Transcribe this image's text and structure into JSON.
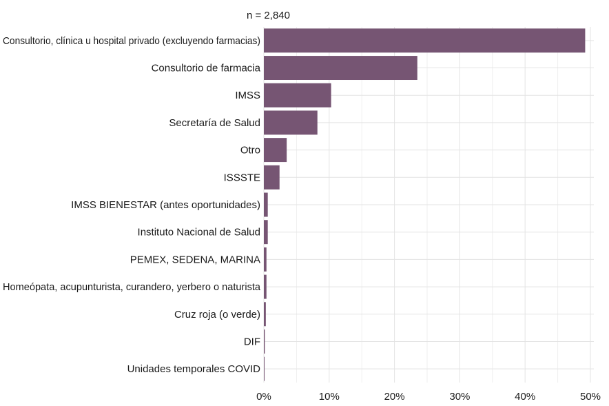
{
  "chart_data": {
    "type": "bar",
    "orientation": "horizontal",
    "subtitle": "n = 2,840",
    "categories": [
      "Consultorio, clínica u hospital privado (excluyendo farmacias)",
      "Consultorio de farmacia",
      "IMSS",
      "Secretaría de Salud",
      "Otro",
      "ISSSTE",
      "IMSS BIENESTAR (antes oportunidades)",
      "Instituto Nacional de Salud",
      "PEMEX, SEDENA, MARINA",
      "Homeópata, acupunturista, curandero, yerbero o naturista",
      "Cruz roja (o verde)",
      "DIF",
      "Unidades temporales COVID"
    ],
    "values": [
      49.2,
      23.5,
      10.3,
      8.2,
      3.5,
      2.4,
      0.6,
      0.6,
      0.4,
      0.4,
      0.3,
      0.15,
      0.05
    ],
    "xlim": [
      0,
      52
    ],
    "xticks": [
      0,
      10,
      20,
      30,
      40,
      50
    ],
    "xtick_labels": [
      "0%",
      "10%",
      "20%",
      "30%",
      "40%",
      "50%"
    ],
    "bar_color": "#765573",
    "grid": true,
    "xlabel": "",
    "ylabel": ""
  }
}
